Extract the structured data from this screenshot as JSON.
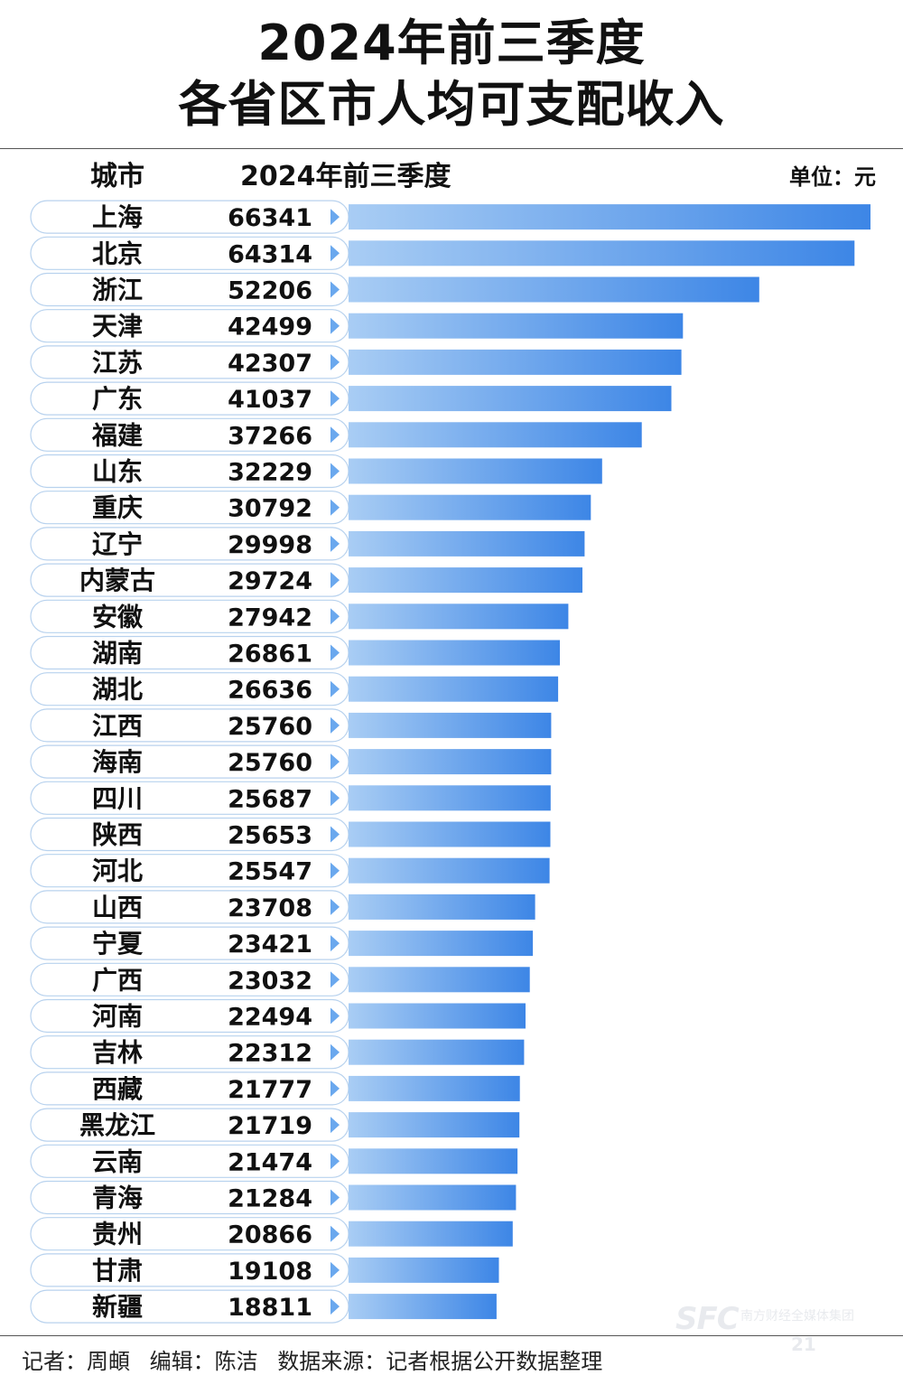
{
  "title": {
    "line1": "2024年前三季度",
    "line2": "各省区市人均可支配收入"
  },
  "header": {
    "city_label": "城市",
    "period_label": "2024年前三季度",
    "unit_label": "单位：元"
  },
  "footer": {
    "reporter": "记者：周頔",
    "editor": "编辑：陈洁",
    "source": "数据来源：记者根据公开数据整理"
  },
  "colors": {
    "bar_start": "#a9cdf4",
    "bar_end": "#3d86e6",
    "arrow": "#6aa8ee",
    "pill_border": "#b8d2ee",
    "rule": "#555555"
  },
  "chart_data": {
    "type": "bar",
    "orientation": "horizontal",
    "categories": [
      "上海",
      "北京",
      "浙江",
      "天津",
      "江苏",
      "广东",
      "福建",
      "山东",
      "重庆",
      "辽宁",
      "内蒙古",
      "安徽",
      "湖南",
      "湖北",
      "江西",
      "海南",
      "四川",
      "陕西",
      "河北",
      "山西",
      "宁夏",
      "广西",
      "河南",
      "吉林",
      "西藏",
      "黑龙江",
      "云南",
      "青海",
      "贵州",
      "甘肃",
      "新疆"
    ],
    "values": [
      66341,
      64314,
      52206,
      42499,
      42307,
      41037,
      37266,
      32229,
      30792,
      29998,
      29724,
      27942,
      26861,
      26636,
      25760,
      25760,
      25687,
      25653,
      25547,
      23708,
      23421,
      23032,
      22494,
      22312,
      21777,
      21719,
      21474,
      21284,
      20866,
      19108,
      18811
    ],
    "data_labels": [
      "66341",
      "64314",
      "52206",
      "42499",
      "42307",
      "41037",
      "37266",
      "32229",
      "30792",
      "29998",
      "29724",
      "27942",
      "26861",
      "26636",
      "25760",
      "25760",
      "25687",
      "25653",
      "25547",
      "23708",
      "23421",
      "23032",
      "22494",
      "22312",
      "21777",
      "21719",
      "21474",
      "21284",
      "20866",
      "19108",
      "18811"
    ],
    "xlim": [
      0,
      66341
    ],
    "grid": false,
    "legend": "none"
  }
}
